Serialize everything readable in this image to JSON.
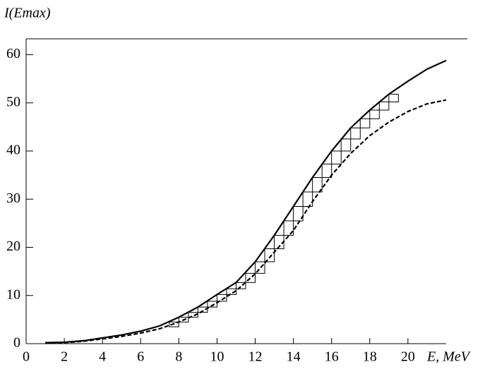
{
  "chart_data": {
    "type": "line",
    "x_label": "E, MeV",
    "y_label": "I(Emax)",
    "xlim": [
      0,
      22
    ],
    "ylim": [
      0,
      63.3
    ],
    "xticks": [
      0,
      2,
      4,
      6,
      8,
      10,
      12,
      14,
      16,
      18,
      20
    ],
    "yticks": [
      0,
      10,
      20,
      30,
      40,
      50,
      60
    ],
    "x": [
      1,
      2,
      3,
      4,
      5,
      6,
      7,
      8,
      9,
      10,
      11,
      12,
      13,
      14,
      15,
      16,
      17,
      18,
      19,
      20,
      21,
      22
    ],
    "series": [
      {
        "color": "#000000",
        "dash": "solid",
        "values": [
          0.2,
          0.3,
          0.6,
          1.2,
          1.8,
          2.6,
          3.7,
          5.5,
          7.6,
          10.2,
          12.7,
          17,
          22.5,
          28.5,
          34.5,
          40,
          44.8,
          48.5,
          51.8,
          54.5,
          57,
          58.8
        ]
      },
      {
        "color": "#000000",
        "dash": "dashed",
        "values": [
          0.1,
          0.2,
          0.5,
          1.0,
          1.5,
          2.2,
          3.1,
          4.5,
          6.2,
          8.5,
          11,
          14.5,
          19,
          23.5,
          29.5,
          35,
          39.5,
          43.2,
          46,
          48.2,
          49.8,
          50.6
        ]
      }
    ],
    "histogram": {
      "color": "#000000",
      "bins": [
        7.5,
        8,
        8.5,
        9,
        9.5,
        10,
        10.5,
        11,
        11.5,
        12,
        12.5,
        13,
        13.5,
        14,
        14.5,
        15,
        15.5,
        16,
        16.5,
        17,
        17.5,
        18,
        18.5,
        19,
        19.5
      ],
      "counts": [
        4.5,
        5.5,
        6.5,
        7.6,
        8.8,
        10.2,
        11.4,
        12.7,
        14.6,
        17,
        19.7,
        22.5,
        25.5,
        28.5,
        31.5,
        34.5,
        37.3,
        40,
        42.5,
        44.8,
        46.7,
        48.5,
        50.2,
        51.8
      ]
    }
  }
}
